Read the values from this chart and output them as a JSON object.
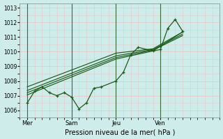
{
  "bg_color": "#ceecea",
  "grid_color": "#b8dcd8",
  "line_color": "#1a5c1a",
  "title": "Pression niveau de la mer( hPa )",
  "ylabel_ticks": [
    1006,
    1007,
    1008,
    1009,
    1010,
    1011,
    1012,
    1013
  ],
  "xlabels": [
    "Mer",
    "Sam",
    "Jeu",
    "Ven"
  ],
  "ylim": [
    1005.5,
    1013.3
  ],
  "xlim": [
    0,
    13.5
  ],
  "main_line_x": [
    0.5,
    1.0,
    1.5,
    2.0,
    2.5,
    3.0,
    3.5,
    4.0,
    4.5,
    5.0,
    5.5,
    6.5,
    7.0,
    7.5,
    8.0,
    9.0,
    9.5,
    10.0,
    10.5,
    11.0
  ],
  "main_line_y": [
    1006.5,
    1007.3,
    1007.6,
    1007.2,
    1007.0,
    1007.2,
    1006.9,
    1006.1,
    1006.5,
    1007.5,
    1007.6,
    1008.0,
    1008.6,
    1009.8,
    1010.3,
    1010.05,
    1010.15,
    1011.6,
    1012.2,
    1011.4
  ],
  "forecast_lines": [
    {
      "x": [
        0.5,
        6.5,
        9.0,
        11.0
      ],
      "y": [
        1007.05,
        1009.5,
        1010.05,
        1011.35
      ]
    },
    {
      "x": [
        0.5,
        6.5,
        9.0,
        11.0
      ],
      "y": [
        1007.2,
        1009.6,
        1010.1,
        1011.1
      ]
    },
    {
      "x": [
        0.5,
        6.5,
        9.0,
        11.0
      ],
      "y": [
        1007.35,
        1009.72,
        1010.15,
        1011.2
      ]
    },
    {
      "x": [
        0.5,
        6.5,
        9.0,
        11.0
      ],
      "y": [
        1007.6,
        1009.9,
        1010.2,
        1011.35
      ]
    }
  ],
  "vline_positions": [
    0.5,
    3.5,
    6.5,
    9.5
  ],
  "xtick_positions": [
    0.5,
    3.5,
    6.5,
    9.5
  ]
}
